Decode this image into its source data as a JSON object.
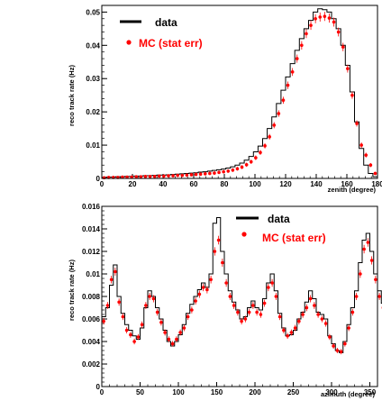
{
  "chart_data": [
    {
      "type": "line",
      "xlabel": "zenith (degree)",
      "ylabel": "reco track rate (Hz)",
      "xlim": [
        0,
        180
      ],
      "ylim": [
        0,
        0.052
      ],
      "x_ticks": [
        0,
        20,
        40,
        60,
        80,
        100,
        120,
        140,
        160,
        180
      ],
      "x_tick_labels": [
        "0",
        "20",
        "40",
        "60",
        "80",
        "100",
        "120",
        "140",
        "160",
        "180"
      ],
      "y_ticks": [
        0,
        0.01,
        0.02,
        0.03,
        0.04,
        0.05
      ],
      "y_tick_labels": [
        "0",
        "0.01",
        "0.02",
        "0.03",
        "0.04",
        "0.05"
      ],
      "grid": false,
      "legend_position": "top-left",
      "bin_width": 3,
      "series": [
        {
          "name": "data",
          "style": "histogram",
          "color": "#000000",
          "values": [
            0.0003,
            0.0004,
            0.0004,
            0.0005,
            0.0005,
            0.0006,
            0.0006,
            0.0007,
            0.0007,
            0.0008,
            0.0008,
            0.0009,
            0.001,
            0.001,
            0.0011,
            0.0012,
            0.0013,
            0.0014,
            0.0015,
            0.0016,
            0.0017,
            0.0019,
            0.002,
            0.0022,
            0.0024,
            0.0026,
            0.0028,
            0.0031,
            0.0035,
            0.004,
            0.0046,
            0.0055,
            0.0066,
            0.008,
            0.0097,
            0.012,
            0.015,
            0.0185,
            0.0225,
            0.0265,
            0.0305,
            0.0345,
            0.0385,
            0.042,
            0.045,
            0.0475,
            0.05,
            0.051,
            0.0507,
            0.05,
            0.048,
            0.045,
            0.04,
            0.034,
            0.026,
            0.017,
            0.009,
            0.004,
            0.0015,
            0.0005
          ]
        },
        {
          "name": "MC (stat err)",
          "style": "points",
          "color": "#ff0000",
          "values": [
            0.0002,
            0.0003,
            0.0003,
            0.0003,
            0.0004,
            0.0004,
            0.0004,
            0.0005,
            0.0005,
            0.0006,
            0.0006,
            0.0006,
            0.0007,
            0.0007,
            0.0008,
            0.0008,
            0.0009,
            0.0009,
            0.001,
            0.0011,
            0.0012,
            0.0013,
            0.0014,
            0.0015,
            0.0016,
            0.0018,
            0.002,
            0.0022,
            0.0025,
            0.0029,
            0.0034,
            0.0041,
            0.005,
            0.0062,
            0.0078,
            0.0098,
            0.0125,
            0.016,
            0.0195,
            0.0235,
            0.028,
            0.032,
            0.036,
            0.04,
            0.0435,
            0.046,
            0.048,
            0.0485,
            0.0487,
            0.0482,
            0.047,
            0.044,
            0.0395,
            0.033,
            0.025,
            0.0165,
            0.01,
            0.007,
            0.004,
            0.0015
          ]
        }
      ]
    },
    {
      "type": "line",
      "xlabel": "azimuth (degree)",
      "ylabel": "reco track rate (Hz)",
      "xlim": [
        0,
        360
      ],
      "ylim": [
        0,
        0.016
      ],
      "x_ticks": [
        0,
        50,
        100,
        150,
        200,
        250,
        300,
        350
      ],
      "x_tick_labels": [
        "0",
        "50",
        "100",
        "150",
        "200",
        "250",
        "300",
        "350"
      ],
      "y_ticks": [
        0,
        0.002,
        0.004,
        0.006,
        0.008,
        0.01,
        0.012,
        0.014,
        0.016
      ],
      "y_tick_labels": [
        "0",
        "0.002",
        "0.004",
        "0.006",
        "0.008",
        "0.01",
        "0.012",
        "0.014",
        "0.016"
      ],
      "grid": false,
      "legend_position": "top-right",
      "bin_width": 5,
      "series": [
        {
          "name": "data",
          "style": "histogram",
          "color": "#000000",
          "values": [
            0.0062,
            0.007,
            0.009,
            0.0108,
            0.008,
            0.0065,
            0.0055,
            0.005,
            0.0045,
            0.0042,
            0.0052,
            0.007,
            0.0085,
            0.008,
            0.007,
            0.006,
            0.005,
            0.004,
            0.0036,
            0.004,
            0.0046,
            0.0055,
            0.0065,
            0.0073,
            0.008,
            0.0086,
            0.0092,
            0.0088,
            0.01,
            0.0145,
            0.015,
            0.012,
            0.01,
            0.0085,
            0.0075,
            0.0068,
            0.006,
            0.0062,
            0.007,
            0.0076,
            0.007,
            0.0068,
            0.0078,
            0.0092,
            0.01,
            0.0085,
            0.0065,
            0.0052,
            0.0045,
            0.0046,
            0.005,
            0.006,
            0.0066,
            0.0075,
            0.0085,
            0.0078,
            0.0066,
            0.0064,
            0.006,
            0.0045,
            0.0038,
            0.0032,
            0.003,
            0.004,
            0.0055,
            0.007,
            0.0085,
            0.011,
            0.013,
            0.0136,
            0.012,
            0.01,
            0.0085,
            0.0074
          ]
        },
        {
          "name": "MC (stat err)",
          "style": "points",
          "color": "#ff0000",
          "values": [
            0.0058,
            0.0072,
            0.0095,
            0.0102,
            0.0075,
            0.0062,
            0.005,
            0.0046,
            0.004,
            0.0044,
            0.0055,
            0.0072,
            0.008,
            0.0078,
            0.0066,
            0.0057,
            0.0048,
            0.0042,
            0.0038,
            0.0042,
            0.0048,
            0.0052,
            0.0062,
            0.0068,
            0.0076,
            0.0082,
            0.0088,
            0.0086,
            0.0095,
            0.012,
            0.013,
            0.011,
            0.0092,
            0.008,
            0.0072,
            0.0066,
            0.0058,
            0.006,
            0.0066,
            0.0072,
            0.0066,
            0.0064,
            0.0074,
            0.0088,
            0.0092,
            0.008,
            0.0062,
            0.005,
            0.0045,
            0.0048,
            0.0052,
            0.0058,
            0.0064,
            0.007,
            0.0078,
            0.0072,
            0.0064,
            0.006,
            0.0056,
            0.0044,
            0.0036,
            0.0032,
            0.0031,
            0.0038,
            0.0052,
            0.0066,
            0.008,
            0.01,
            0.0122,
            0.0128,
            0.0112,
            0.0095,
            0.008,
            0.007
          ]
        }
      ]
    }
  ]
}
